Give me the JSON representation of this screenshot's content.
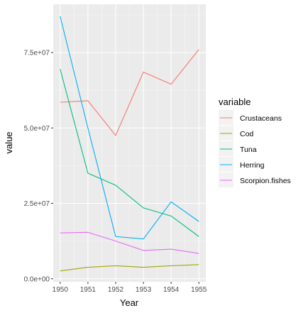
{
  "chart_data": {
    "type": "line",
    "xlabel": "Year",
    "ylabel": "value",
    "legend_title": "variable",
    "legend_position": "right",
    "grid": true,
    "x": [
      1950,
      1951,
      1952,
      1953,
      1954,
      1955
    ],
    "x_tick_labels": [
      "1950",
      "1951",
      "1952",
      "1953",
      "1954",
      "1955"
    ],
    "ylim": [
      -1000000,
      91000000
    ],
    "y_ticks": [
      0,
      25000000,
      50000000,
      75000000
    ],
    "y_tick_labels": [
      "0.0e+00",
      "2.5e+07",
      "5.0e+07",
      "7.5e+07"
    ],
    "series": [
      {
        "name": "Crustaceans",
        "color": "#F8766D",
        "values": [
          58500000,
          59000000,
          47500000,
          68500000,
          64500000,
          76000000
        ]
      },
      {
        "name": "Cod",
        "color": "#A3A500",
        "values": [
          2600000,
          3800000,
          4300000,
          3800000,
          4300000,
          4700000
        ]
      },
      {
        "name": "Tuna",
        "color": "#00BF7D",
        "values": [
          69500000,
          35000000,
          31000000,
          23500000,
          20800000,
          14000000
        ]
      },
      {
        "name": "Herring",
        "color": "#00B0F6",
        "values": [
          87000000,
          50000000,
          14000000,
          13200000,
          25500000,
          19000000
        ]
      },
      {
        "name": "Scorpion.fishes",
        "color": "#E76BF3",
        "values": [
          15200000,
          15400000,
          12500000,
          9400000,
          9800000,
          8400000
        ]
      }
    ]
  }
}
